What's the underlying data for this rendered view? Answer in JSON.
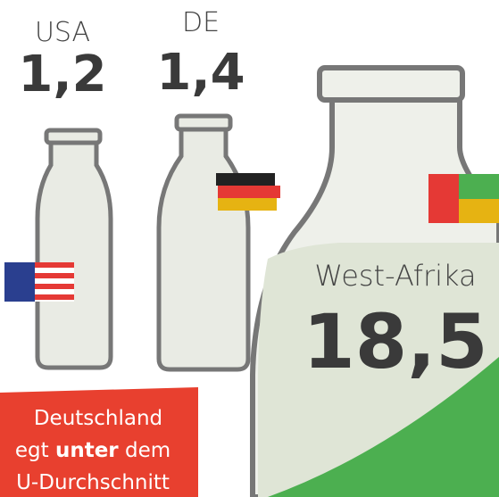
{
  "items": [
    {
      "label": "USA",
      "value": "1,2"
    },
    {
      "label": "DE",
      "value": "1,4"
    },
    {
      "label": "West-Afrika",
      "value": "18,5"
    }
  ],
  "callout": {
    "line1": "Deutschland",
    "line2_start": "egt ",
    "line2_bold": "unter",
    "line2_end": " dem",
    "line3": "U-Durchschnitt"
  }
}
